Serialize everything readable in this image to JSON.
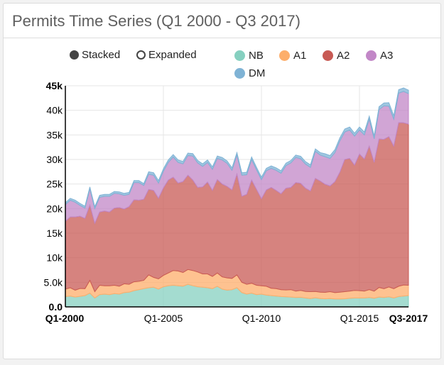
{
  "panel": {
    "title": "Permits Time Series (Q1 2000 - Q3 2017)"
  },
  "controls": {
    "stacked_label": "Stacked",
    "expanded_label": "Expanded",
    "selected": "Stacked"
  },
  "chart_data": {
    "type": "area",
    "stacked": true,
    "x": [
      "Q1-2000",
      "Q2-2000",
      "Q3-2000",
      "Q4-2000",
      "Q1-2001",
      "Q2-2001",
      "Q3-2001",
      "Q4-2001",
      "Q1-2002",
      "Q2-2002",
      "Q3-2002",
      "Q4-2002",
      "Q1-2003",
      "Q2-2003",
      "Q3-2003",
      "Q4-2003",
      "Q1-2004",
      "Q2-2004",
      "Q3-2004",
      "Q4-2004",
      "Q1-2005",
      "Q2-2005",
      "Q3-2005",
      "Q4-2005",
      "Q1-2006",
      "Q2-2006",
      "Q3-2006",
      "Q4-2006",
      "Q1-2007",
      "Q2-2007",
      "Q3-2007",
      "Q4-2007",
      "Q1-2008",
      "Q2-2008",
      "Q3-2008",
      "Q4-2008",
      "Q1-2009",
      "Q2-2009",
      "Q3-2009",
      "Q4-2009",
      "Q1-2010",
      "Q2-2010",
      "Q3-2010",
      "Q4-2010",
      "Q1-2011",
      "Q2-2011",
      "Q3-2011",
      "Q4-2011",
      "Q1-2012",
      "Q2-2012",
      "Q3-2012",
      "Q4-2012",
      "Q1-2013",
      "Q2-2013",
      "Q3-2013",
      "Q4-2013",
      "Q1-2014",
      "Q2-2014",
      "Q3-2014",
      "Q4-2014",
      "Q1-2015",
      "Q2-2015",
      "Q3-2015",
      "Q4-2015",
      "Q1-2016",
      "Q2-2016",
      "Q3-2016",
      "Q4-2016",
      "Q1-2017",
      "Q2-2017",
      "Q3-2017"
    ],
    "xticks": [
      {
        "label": "Q1-2000",
        "bold": true
      },
      {
        "label": "Q1-2005",
        "bold": false
      },
      {
        "label": "Q1-2010",
        "bold": false
      },
      {
        "label": "Q1-2015",
        "bold": false
      },
      {
        "label": "Q3-2017",
        "bold": true
      }
    ],
    "yticks": [
      "0.0",
      "5.0k",
      "10k",
      "15k",
      "20k",
      "25k",
      "30k",
      "35k",
      "40k",
      "45k"
    ],
    "ylim": [
      0,
      45000
    ],
    "grid": true,
    "legend_position": "top",
    "series": [
      {
        "name": "NB",
        "color": "#86d0c0",
        "values": [
          2100,
          2200,
          2000,
          2150,
          2300,
          2800,
          1800,
          2500,
          2600,
          2500,
          2700,
          2600,
          2900,
          3000,
          3300,
          3500,
          3700,
          3900,
          4000,
          3600,
          4100,
          4300,
          4400,
          4300,
          4200,
          4600,
          4300,
          4100,
          4000,
          3900,
          3700,
          4200,
          3600,
          3400,
          3500,
          3900,
          2900,
          2600,
          2800,
          2500,
          2600,
          2400,
          2300,
          2200,
          2100,
          2050,
          2000,
          1900,
          1950,
          1800,
          1700,
          1850,
          1700,
          1650,
          1700,
          1600,
          1600,
          1650,
          1750,
          1800,
          1800,
          1800,
          1900,
          1750,
          2000,
          1900,
          2050,
          1800,
          2100,
          2200,
          2300
        ]
      },
      {
        "name": "A1",
        "color": "#fdae6b",
        "values": [
          1500,
          1700,
          1400,
          1600,
          1400,
          2600,
          1300,
          1900,
          1700,
          1800,
          1700,
          1600,
          1800,
          1600,
          1800,
          1700,
          1700,
          2600,
          2000,
          2100,
          2300,
          2600,
          3000,
          3000,
          2800,
          3000,
          3100,
          3000,
          2700,
          2800,
          2500,
          2700,
          2500,
          2500,
          2300,
          2600,
          2100,
          2000,
          2000,
          1900,
          1700,
          1800,
          1500,
          1500,
          1400,
          1400,
          1500,
          1300,
          1400,
          1350,
          1400,
          1300,
          1300,
          1300,
          1400,
          1300,
          1400,
          1450,
          1450,
          1550,
          1500,
          1400,
          1600,
          1450,
          1950,
          1800,
          2000,
          1900,
          2100,
          2250,
          2100
        ]
      },
      {
        "name": "A2",
        "color": "#c85a54",
        "values": [
          13800,
          14400,
          14900,
          14700,
          14300,
          15300,
          13900,
          14900,
          15200,
          15000,
          15700,
          16000,
          15200,
          15800,
          16700,
          16500,
          16500,
          17400,
          17700,
          16400,
          17800,
          18900,
          19000,
          17900,
          18500,
          19200,
          18400,
          17200,
          17700,
          18700,
          17500,
          19000,
          18900,
          18600,
          18000,
          20500,
          17500,
          18300,
          21000,
          19500,
          17700,
          19600,
          20500,
          20000,
          19500,
          20700,
          20800,
          22100,
          21800,
          21000,
          20500,
          23000,
          22600,
          22000,
          21500,
          22600,
          24400,
          26900,
          27000,
          25500,
          27800,
          26900,
          29200,
          26200,
          30200,
          30400,
          30600,
          29000,
          33300,
          33000,
          32800
        ]
      },
      {
        "name": "A3",
        "color": "#c287c7",
        "values": [
          3400,
          3400,
          3000,
          2200,
          2100,
          3300,
          3000,
          3000,
          3000,
          3200,
          3000,
          2800,
          2800,
          2500,
          3500,
          3600,
          2800,
          3100,
          3100,
          3100,
          3400,
          3600,
          4100,
          4200,
          3600,
          4000,
          4900,
          5000,
          4200,
          4000,
          4300,
          4300,
          4900,
          4700,
          4000,
          3900,
          4300,
          4000,
          4200,
          4000,
          3900,
          3900,
          3900,
          4100,
          4200,
          4600,
          5000,
          5100,
          5000,
          4900,
          4800,
          5500,
          5300,
          5600,
          5600,
          5900,
          6400,
          5600,
          5800,
          5900,
          4900,
          4900,
          5500,
          4800,
          6000,
          6800,
          6200,
          5500,
          6000,
          6400,
          6200
        ]
      },
      {
        "name": "DM",
        "color": "#7fb3d5",
        "values": [
          400,
          400,
          400,
          400,
          400,
          400,
          400,
          400,
          400,
          400,
          400,
          400,
          400,
          400,
          400,
          400,
          400,
          500,
          500,
          500,
          500,
          500,
          500,
          500,
          500,
          500,
          500,
          500,
          500,
          500,
          500,
          500,
          500,
          500,
          500,
          500,
          500,
          500,
          500,
          500,
          500,
          500,
          500,
          500,
          500,
          500,
          500,
          500,
          500,
          500,
          500,
          500,
          500,
          600,
          600,
          600,
          600,
          600,
          600,
          600,
          600,
          600,
          600,
          600,
          600,
          600,
          700,
          700,
          700,
          700,
          700
        ]
      }
    ]
  }
}
